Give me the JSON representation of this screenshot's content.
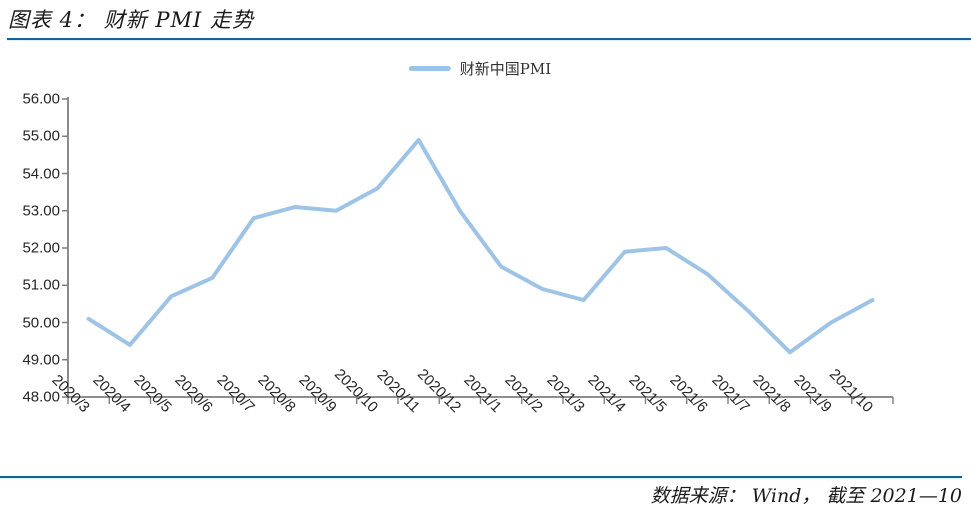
{
  "figure": {
    "title": "图表 4： 财新 PMI 走势",
    "source": "数据来源： Wind， 截至 2021—10"
  },
  "legend": {
    "label": "财新中国PMI"
  },
  "colors": {
    "accent_rule": "#1A6293",
    "line": "#9DC3E6",
    "axis": "#7F7F7F",
    "tick_text": "#262626"
  },
  "chart_data": {
    "type": "line",
    "title": "财新 PMI 走势",
    "categories": [
      "2020/3",
      "2020/4",
      "2020/5",
      "2020/6",
      "2020/7",
      "2020/8",
      "2020/9",
      "2020/10",
      "2020/11",
      "2020/12",
      "2021/1",
      "2021/2",
      "2021/3",
      "2021/4",
      "2021/5",
      "2021/6",
      "2021/7",
      "2021/8",
      "2021/9",
      "2021/10"
    ],
    "series": [
      {
        "name": "财新中国PMI",
        "color": "#9DC3E6",
        "values": [
          50.1,
          49.4,
          50.7,
          51.2,
          52.8,
          53.1,
          53.0,
          53.6,
          54.9,
          53.0,
          51.5,
          50.9,
          50.6,
          51.9,
          52.0,
          51.3,
          50.3,
          49.2,
          50.0,
          50.6
        ]
      }
    ],
    "xlabel": "",
    "ylabel": "",
    "ylim": [
      48,
      56
    ],
    "ytick_step": 1,
    "ytick_decimals": 2,
    "grid": false,
    "legend_position": "top-center"
  }
}
